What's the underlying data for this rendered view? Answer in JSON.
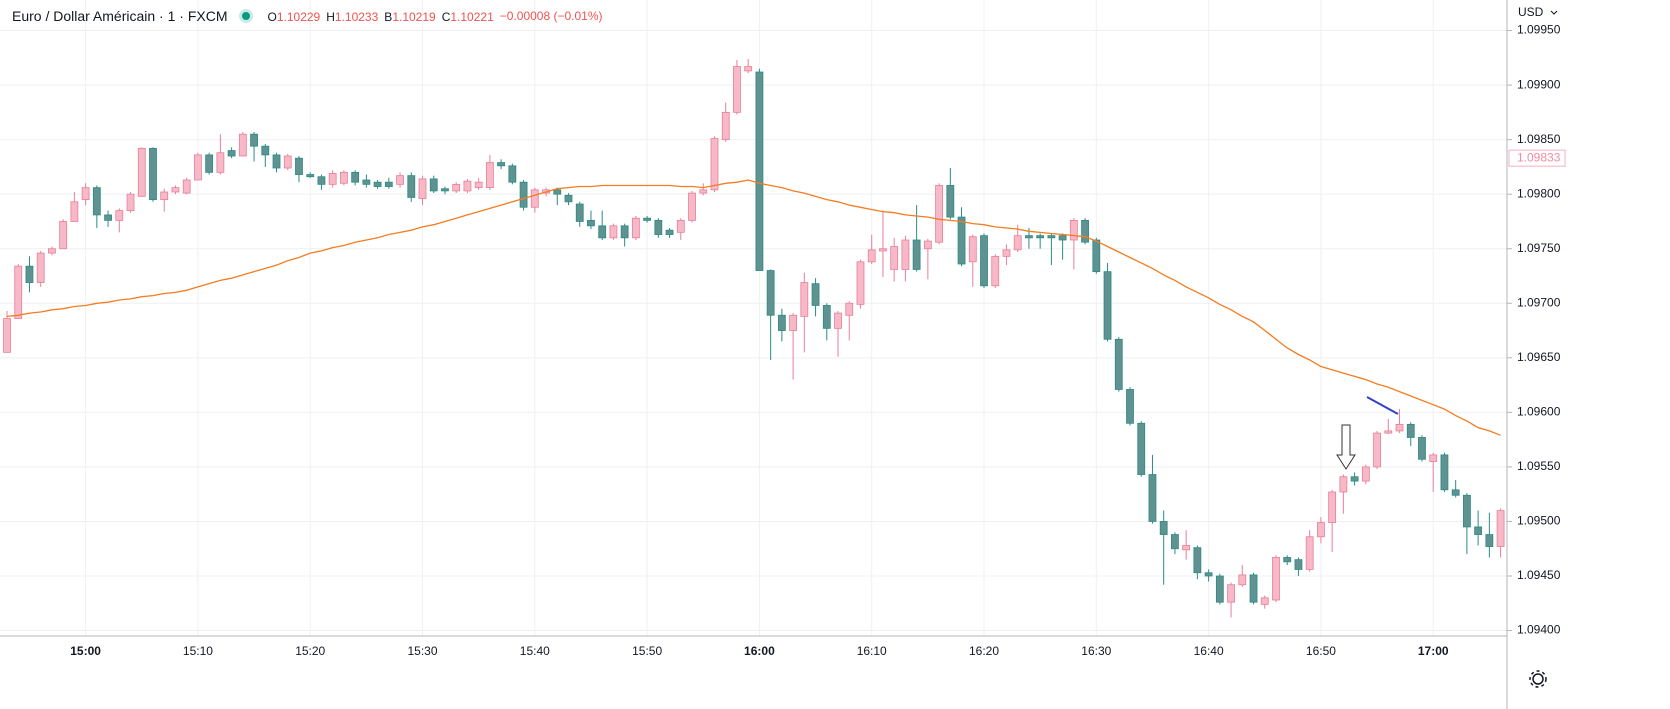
{
  "chart_data": {
    "type": "candlestick",
    "title": "Euro / Dollar Américain · 1 · FXCM",
    "ohlc_legend": [
      {
        "key": "O",
        "value": 1.10229
      },
      {
        "key": "H",
        "value": 1.10233
      },
      {
        "key": "B",
        "value": 1.10219
      },
      {
        "key": "C",
        "value": 1.10221
      }
    ],
    "change": "−0.00008 (−0.01%)",
    "currency": "USD",
    "price_badge": 1.09833,
    "up_color": "#f7b8c7",
    "up_border": "#e97f98",
    "down_color": "#5f9290",
    "down_border": "#2a8c84",
    "grid": true,
    "ylim": [
      1.09395,
      1.09978
    ],
    "yticks": [
      {
        "value": 1.094,
        "label": "1.09400"
      },
      {
        "value": 1.0945,
        "label": "1.09450"
      },
      {
        "value": 1.095,
        "label": "1.09500"
      },
      {
        "value": 1.0955,
        "label": "1.09550"
      },
      {
        "value": 1.096,
        "label": "1.09600"
      },
      {
        "value": 1.0965,
        "label": "1.09650"
      },
      {
        "value": 1.097,
        "label": "1.09700"
      },
      {
        "value": 1.0975,
        "label": "1.09750"
      },
      {
        "value": 1.098,
        "label": "1.09800"
      },
      {
        "value": 1.0985,
        "label": "1.09850"
      },
      {
        "value": 1.099,
        "label": "1.09900"
      },
      {
        "value": 1.0995,
        "label": "1.09950"
      }
    ],
    "categories": [
      null,
      null,
      null,
      null,
      null,
      null,
      null,
      "15:00",
      null,
      null,
      null,
      null,
      null,
      null,
      null,
      null,
      null,
      "15:10",
      null,
      null,
      null,
      null,
      null,
      null,
      null,
      null,
      null,
      "15:20",
      null,
      null,
      null,
      null,
      null,
      null,
      null,
      null,
      null,
      "15:30",
      null,
      null,
      null,
      null,
      null,
      null,
      null,
      null,
      null,
      "15:40",
      null,
      null,
      null,
      null,
      null,
      null,
      null,
      null,
      null,
      "15:50",
      null,
      null,
      null,
      null,
      null,
      null,
      null,
      null,
      null,
      "16:00",
      null,
      null,
      null,
      null,
      null,
      null,
      null,
      null,
      null,
      "16:10",
      null,
      null,
      null,
      null,
      null,
      null,
      null,
      null,
      null,
      "16:20",
      null,
      null,
      null,
      null,
      null,
      null,
      null,
      null,
      null,
      "16:30",
      null,
      null,
      null,
      null,
      null,
      null,
      null,
      null,
      null,
      "16:40",
      null,
      null,
      null,
      null,
      null,
      null,
      null,
      null,
      null,
      "16:50",
      null,
      null,
      null,
      null,
      null,
      null,
      null,
      null,
      null,
      "17:00",
      null,
      null,
      null,
      null,
      null,
      null
    ],
    "open": [
      1.09655,
      1.09686,
      1.09734,
      1.09719,
      1.09746,
      1.0975,
      1.09775,
      1.09795,
      1.09806,
      1.09781,
      1.09776,
      1.09785,
      1.09798,
      1.09842,
      1.09795,
      1.09802,
      1.09801,
      1.09813,
      1.09836,
      1.0982,
      1.0984,
      1.09835,
      1.09855,
      1.09844,
      1.09836,
      1.09824,
      1.09833,
      1.09818,
      1.09816,
      1.09809,
      1.0981,
      1.0982,
      1.09813,
      1.09811,
      1.09811,
      1.09809,
      1.09817,
      1.09796,
      1.09814,
      1.09805,
      1.09803,
      1.09803,
      1.09806,
      1.09806,
      1.09829,
      1.09826,
      1.09811,
      1.09788,
      1.09801,
      1.09804,
      1.09799,
      1.09791,
      1.09776,
      1.09771,
      1.0976,
      1.09771,
      1.0976,
      1.09778,
      1.09776,
      1.09767,
      1.09765,
      1.09776,
      1.09801,
      1.09804,
      1.0985,
      1.09875,
      1.09913,
      1.09912,
      1.0973,
      1.09689,
      1.09675,
      1.09688,
      1.09718,
      1.09698,
      1.09677,
      1.09689,
      1.09699,
      1.09738,
      1.09748,
      1.09731,
      1.09731,
      1.09758,
      1.0975,
      1.09756,
      1.09808,
      1.09779,
      1.09738,
      1.09762,
      1.09716,
      1.09743,
      1.09749,
      1.09762,
      1.09762,
      1.09762,
      1.09762,
      1.09758,
      1.09776,
      1.09758,
      1.09729,
      1.09667,
      1.09621,
      1.0959,
      1.09543,
      1.095,
      1.09488,
      1.09474,
      1.09476,
      1.09453,
      1.0945,
      1.09426,
      1.09442,
      1.09451,
      1.09424,
      1.09428,
      1.09467,
      1.09465,
      1.09456,
      1.09486,
      1.09499,
      1.09527,
      1.09541,
      1.09537,
      1.0955,
      1.09581,
      1.09583,
      1.09589,
      1.09577,
      1.09555,
      1.09561,
      1.09529,
      1.09524,
      1.09495,
      1.09488,
      1.09477
    ],
    "high": [
      1.09693,
      1.09736,
      1.09743,
      1.09748,
      1.09752,
      1.09777,
      1.09802,
      1.0981,
      1.09808,
      1.09785,
      1.09787,
      1.09802,
      1.09843,
      1.09843,
      1.09805,
      1.09808,
      1.09815,
      1.09838,
      1.09838,
      1.09855,
      1.09843,
      1.09857,
      1.09857,
      1.09846,
      1.09838,
      1.09837,
      1.09835,
      1.0982,
      1.09818,
      1.09822,
      1.09822,
      1.09822,
      1.09818,
      1.09813,
      1.09815,
      1.0982,
      1.0982,
      1.09817,
      1.09817,
      1.09807,
      1.09811,
      1.09814,
      1.09815,
      1.09836,
      1.09832,
      1.09828,
      1.09813,
      1.09806,
      1.09806,
      1.09806,
      1.09801,
      1.09793,
      1.09785,
      1.09785,
      1.09773,
      1.09773,
      1.0978,
      1.0978,
      1.09778,
      1.09769,
      1.09778,
      1.09803,
      1.0981,
      1.09853,
      1.09884,
      1.09923,
      1.09924,
      1.09915,
      1.09731,
      1.09695,
      1.09691,
      1.09728,
      1.09723,
      1.097,
      1.09693,
      1.09702,
      1.0974,
      1.09763,
      1.09785,
      1.0976,
      1.09762,
      1.0979,
      1.09759,
      1.0981,
      1.09824,
      1.09788,
      1.09763,
      1.09764,
      1.09745,
      1.09754,
      1.09772,
      1.09769,
      1.09764,
      1.09764,
      1.09764,
      1.09778,
      1.09778,
      1.0976,
      1.09737,
      1.09669,
      1.09623,
      1.09592,
      1.09561,
      1.0951,
      1.0949,
      1.09492,
      1.09478,
      1.09456,
      1.09452,
      1.09444,
      1.0946,
      1.09453,
      1.09432,
      1.09469,
      1.09469,
      1.09467,
      1.09492,
      1.09504,
      1.09529,
      1.09543,
      1.09545,
      1.09552,
      1.09583,
      1.09594,
      1.09603,
      1.09591,
      1.09579,
      1.09563,
      1.09563,
      1.09538,
      1.09526,
      1.0951,
      1.09508,
      1.09512
    ],
    "low": [
      1.09655,
      1.09686,
      1.0971,
      1.09715,
      1.09744,
      1.0975,
      1.09775,
      1.0979,
      1.09769,
      1.0977,
      1.09765,
      1.09783,
      1.09798,
      1.09793,
      1.09784,
      1.098,
      1.098,
      1.09813,
      1.09818,
      1.09818,
      1.09833,
      1.09835,
      1.0983,
      1.09825,
      1.0982,
      1.09822,
      1.09811,
      1.09815,
      1.09804,
      1.09806,
      1.09808,
      1.09808,
      1.09806,
      1.09805,
      1.09805,
      1.09806,
      1.09793,
      1.0979,
      1.09801,
      1.098,
      1.09801,
      1.09801,
      1.09804,
      1.09804,
      1.09823,
      1.09809,
      1.09785,
      1.09783,
      1.09798,
      1.0979,
      1.0979,
      1.0977,
      1.09768,
      1.09758,
      1.09758,
      1.09752,
      1.09758,
      1.09774,
      1.0976,
      1.0976,
      1.09758,
      1.09774,
      1.09799,
      1.09802,
      1.09848,
      1.09873,
      1.09911,
      1.0973,
      1.09648,
      1.09665,
      1.0963,
      1.09655,
      1.09688,
      1.09666,
      1.09651,
      1.09666,
      1.09695,
      1.09736,
      1.09724,
      1.0972,
      1.0972,
      1.09729,
      1.09722,
      1.09754,
      1.09777,
      1.09734,
      1.09715,
      1.09714,
      1.09714,
      1.09735,
      1.09747,
      1.0975,
      1.0975,
      1.09735,
      1.0974,
      1.09731,
      1.09754,
      1.09727,
      1.09665,
      1.09619,
      1.09588,
      1.09541,
      1.09498,
      1.09442,
      1.0947,
      1.09465,
      1.09447,
      1.09445,
      1.09424,
      1.09412,
      1.0944,
      1.09424,
      1.0942,
      1.09426,
      1.0946,
      1.0945,
      1.09454,
      1.0948,
      1.09472,
      1.09507,
      1.09533,
      1.09534,
      1.09548,
      1.0958,
      1.09581,
      1.09569,
      1.09555,
      1.09527,
      1.09527,
      1.09522,
      1.0947,
      1.09478,
      1.09467,
      1.09467
    ],
    "close": [
      1.09686,
      1.09734,
      1.09719,
      1.09746,
      1.0975,
      1.09775,
      1.09793,
      1.09806,
      1.09781,
      1.09776,
      1.09785,
      1.098,
      1.09842,
      1.09795,
      1.09802,
      1.09806,
      1.09813,
      1.09836,
      1.0982,
      1.09838,
      1.09835,
      1.09855,
      1.09844,
      1.09836,
      1.09824,
      1.09835,
      1.09818,
      1.09816,
      1.09809,
      1.09819,
      1.0982,
      1.09811,
      1.09809,
      1.09807,
      1.09807,
      1.09817,
      1.09797,
      1.09814,
      1.09803,
      1.09803,
      1.09809,
      1.09812,
      1.09811,
      1.09829,
      1.09826,
      1.09811,
      1.09788,
      1.09804,
      1.09804,
      1.098,
      1.09793,
      1.09775,
      1.09771,
      1.0976,
      1.09771,
      1.0976,
      1.09778,
      1.09776,
      1.09763,
      1.09763,
      1.09776,
      1.09801,
      1.09804,
      1.09851,
      1.09875,
      1.09917,
      1.09917,
      1.0973,
      1.09689,
      1.09675,
      1.09689,
      1.09719,
      1.09698,
      1.09677,
      1.09691,
      1.097,
      1.09738,
      1.09749,
      1.0975,
      1.09752,
      1.09758,
      1.09731,
      1.09757,
      1.09808,
      1.09779,
      1.09736,
      1.09761,
      1.09716,
      1.09743,
      1.09749,
      1.09762,
      1.0976,
      1.0976,
      1.0976,
      1.09758,
      1.09776,
      1.09756,
      1.09729,
      1.09667,
      1.09621,
      1.0959,
      1.09543,
      1.095,
      1.09488,
      1.09475,
      1.09478,
      1.09453,
      1.0945,
      1.09426,
      1.09442,
      1.09451,
      1.09426,
      1.0943,
      1.09467,
      1.09463,
      1.09456,
      1.09486,
      1.09499,
      1.09527,
      1.09541,
      1.09537,
      1.0955,
      1.09581,
      1.09583,
      1.09589,
      1.09577,
      1.09557,
      1.09561,
      1.09529,
      1.09524,
      1.09495,
      1.09488,
      1.09477,
      1.0951
    ],
    "moving_average": {
      "color": "#f57c20",
      "values": [
        1.09688,
        1.09689,
        1.09691,
        1.09692,
        1.09694,
        1.09695,
        1.09697,
        1.09698,
        1.097,
        1.09701,
        1.09703,
        1.09704,
        1.09706,
        1.09707,
        1.09709,
        1.0971,
        1.09712,
        1.09715,
        1.09718,
        1.09721,
        1.09723,
        1.09726,
        1.09729,
        1.09732,
        1.09735,
        1.09739,
        1.09742,
        1.09746,
        1.09748,
        1.09751,
        1.09753,
        1.09756,
        1.09758,
        1.0976,
        1.09763,
        1.09765,
        1.09767,
        1.0977,
        1.09772,
        1.09775,
        1.09778,
        1.09781,
        1.09784,
        1.09787,
        1.0979,
        1.09793,
        1.09796,
        1.09799,
        1.09802,
        1.09805,
        1.09806,
        1.09807,
        1.09807,
        1.09808,
        1.09808,
        1.09808,
        1.09808,
        1.09808,
        1.09808,
        1.09808,
        1.09807,
        1.09807,
        1.09806,
        1.09808,
        1.0981,
        1.09811,
        1.09813,
        1.0981,
        1.09808,
        1.09806,
        1.09803,
        1.09801,
        1.09798,
        1.09795,
        1.09793,
        1.0979,
        1.09788,
        1.09786,
        1.09784,
        1.09783,
        1.09781,
        1.0978,
        1.09779,
        1.09777,
        1.09776,
        1.09775,
        1.09773,
        1.09772,
        1.0977,
        1.09769,
        1.09768,
        1.09766,
        1.09765,
        1.09764,
        1.09763,
        1.09762,
        1.09761,
        1.09757,
        1.09752,
        1.09747,
        1.09742,
        1.09737,
        1.09732,
        1.09726,
        1.09721,
        1.09715,
        1.0971,
        1.09705,
        1.09699,
        1.09694,
        1.09688,
        1.09683,
        1.09675,
        1.09667,
        1.09659,
        1.09653,
        1.09648,
        1.09642,
        1.09639,
        1.09636,
        1.09633,
        1.0963,
        1.09626,
        1.09623,
        1.09619,
        1.09615,
        1.09611,
        1.09607,
        1.09603,
        1.09597,
        1.09592,
        1.09586,
        1.09583,
        1.09579
      ]
    }
  }
}
